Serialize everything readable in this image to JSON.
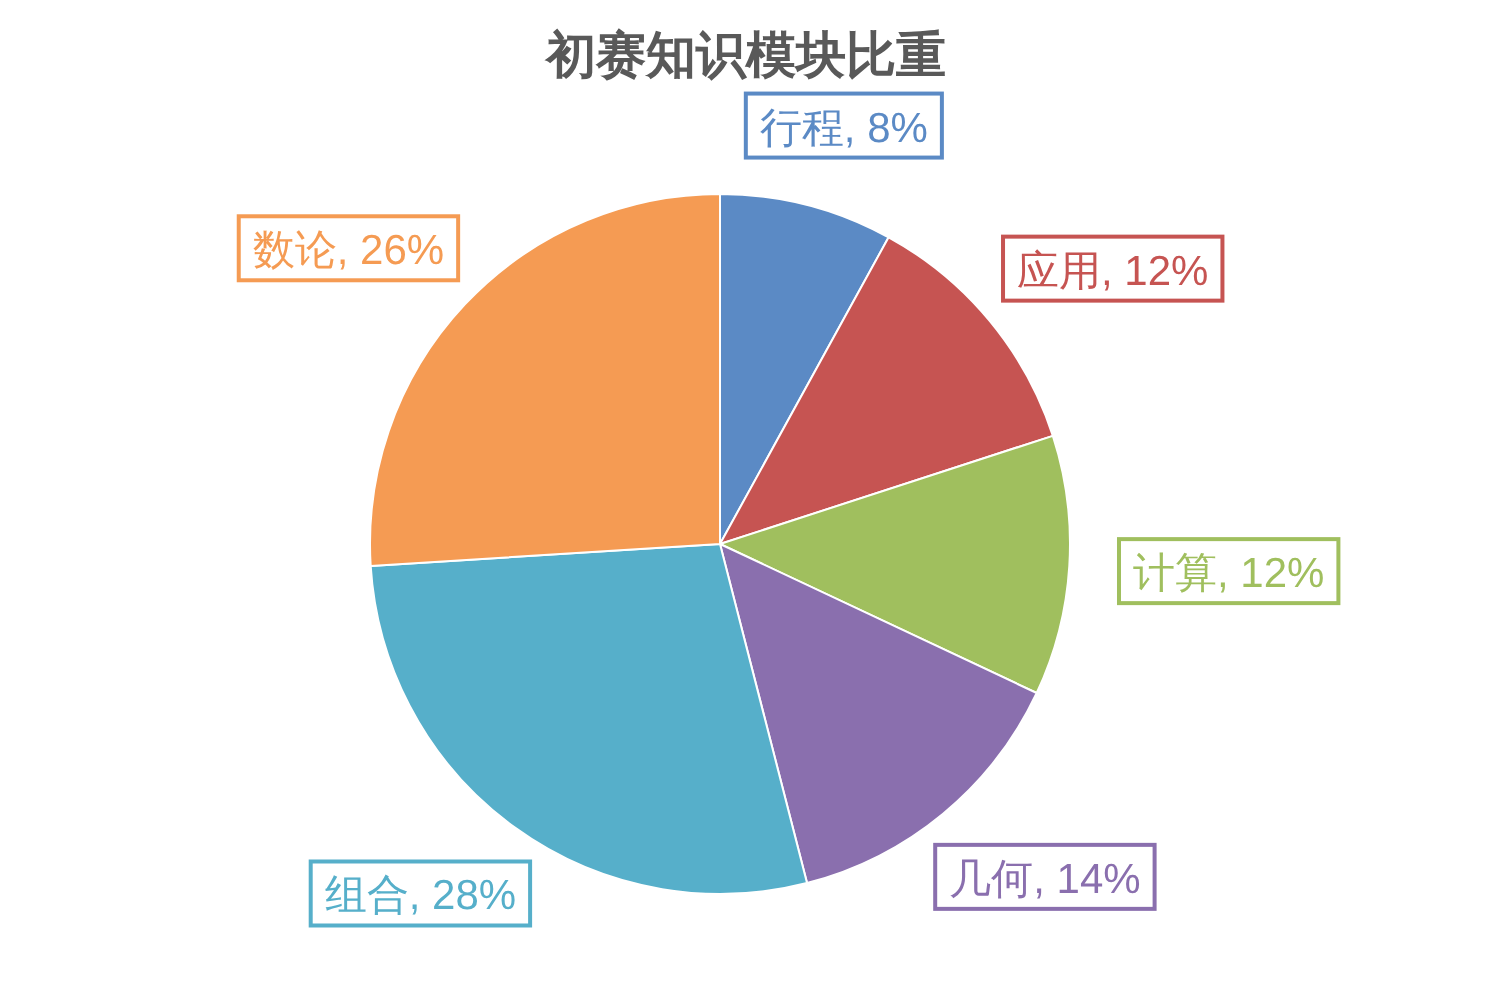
{
  "chart_data": {
    "type": "pie",
    "title": "初赛知识模块比重",
    "categories": [
      "行程",
      "应用",
      "计算",
      "几何",
      "组合",
      "数论"
    ],
    "values": [
      8,
      12,
      12,
      14,
      28,
      26
    ],
    "colors": [
      "#5b8ac5",
      "#c65452",
      "#a0bf5e",
      "#8a6fae",
      "#56afca",
      "#f59b53"
    ],
    "value_labels": [
      ", 8%",
      ", 12%",
      ", 12%",
      ", 14%",
      ", 28%",
      ", 26%"
    ]
  }
}
